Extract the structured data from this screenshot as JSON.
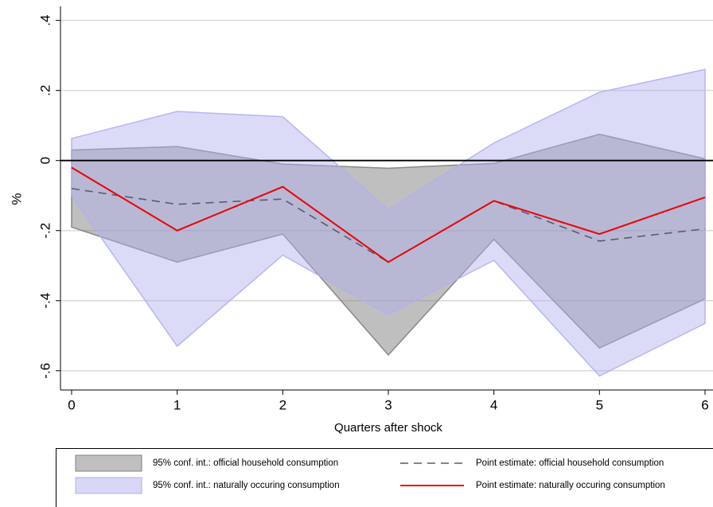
{
  "chart_data": {
    "type": "line",
    "x_label": "Quarters after shock",
    "y_label": "%",
    "x": [
      0,
      1,
      2,
      3,
      4,
      5,
      6
    ],
    "xlim": [
      -0.1,
      6
    ],
    "xticks": [
      0,
      1,
      2,
      3,
      4,
      5,
      6
    ],
    "ylim": [
      -0.655,
      0.44
    ],
    "yticks": [
      {
        "value": -0.6,
        "label": "-.6"
      },
      {
        "value": -0.4,
        "label": "-.4"
      },
      {
        "value": -0.2,
        "label": "-.2"
      },
      0,
      {
        "value": 0.2,
        "label": ".2"
      },
      {
        "value": 0.4,
        "label": ".4"
      }
    ],
    "grid": true,
    "reference_line": 0,
    "series": [
      {
        "name": "95% conf. int.: official household consumption",
        "kind": "band",
        "color": "#808080",
        "upper": [
          0.03,
          0.04,
          -0.01,
          -0.022,
          -0.008,
          0.075,
          0.005
        ],
        "lower": [
          -0.19,
          -0.29,
          -0.21,
          -0.555,
          -0.225,
          -0.535,
          -0.395
        ]
      },
      {
        "name": "Point estimate: official household consumption",
        "kind": "line",
        "dash": true,
        "color": "#5a5a6e",
        "values": [
          -0.08,
          -0.125,
          -0.11,
          -0.29,
          -0.115,
          -0.23,
          -0.195
        ]
      },
      {
        "name": "95% conf. int.: naturally occuring consumption",
        "kind": "band",
        "color": "#b0b0f0",
        "upper": [
          0.063,
          0.14,
          0.125,
          -0.14,
          0.05,
          0.195,
          0.26
        ],
        "lower": [
          -0.1,
          -0.53,
          -0.27,
          -0.44,
          -0.285,
          -0.615,
          -0.465
        ]
      },
      {
        "name": "Point estimate: naturally occuring consumption",
        "kind": "line",
        "dash": false,
        "color": "#ee0000",
        "values": [
          -0.02,
          -0.2,
          -0.075,
          -0.29,
          -0.115,
          -0.21,
          -0.105
        ]
      }
    ]
  }
}
